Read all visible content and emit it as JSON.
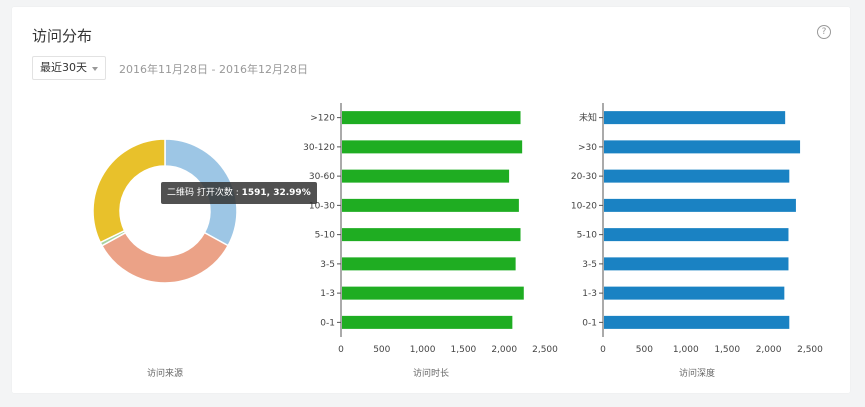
{
  "header": {
    "title": "访问分布",
    "help_icon": "question-circle-icon",
    "help_glyph": "?"
  },
  "filter": {
    "range_selected": "最近30天",
    "date_range": "2016年11月28日 - 2016年12月28日"
  },
  "chart_data": [
    {
      "type": "pie",
      "label": "访问来源",
      "slices": [
        {
          "value": 32.99,
          "color": "#9dc6e5"
        },
        {
          "value": 34.0,
          "color": "#eba287"
        },
        {
          "value": 0.8,
          "color": "#a8d4a0"
        },
        {
          "value": 32.21,
          "color": "#e8c12b"
        }
      ],
      "tooltip": {
        "prefix": "二维码 打开次数 : ",
        "value": "1591, 32.99%"
      }
    },
    {
      "type": "bar",
      "orientation": "horizontal",
      "label": "访问时长",
      "categories": [
        ">120",
        "30-120",
        "30-60",
        "10-30",
        "5-10",
        "3-5",
        "1-3",
        "0-1"
      ],
      "values": [
        2200,
        2220,
        2060,
        2180,
        2200,
        2140,
        2240,
        2100
      ],
      "xlim": [
        0,
        2500
      ],
      "xticks": [
        "0",
        "500",
        "1,000",
        "1,500",
        "2,000",
        "2,500"
      ],
      "color": "#1fad22"
    },
    {
      "type": "bar",
      "orientation": "horizontal",
      "label": "访问深度",
      "categories": [
        "未知",
        ">30",
        "20-30",
        "10-20",
        "5-10",
        "3-5",
        "1-3",
        "0-1"
      ],
      "values": [
        2200,
        2380,
        2250,
        2330,
        2240,
        2240,
        2190,
        2250
      ],
      "xlim": [
        0,
        2500
      ],
      "xticks": [
        "0",
        "500",
        "1,000",
        "1,500",
        "2,000",
        "2,500"
      ],
      "color": "#1a82c3"
    }
  ]
}
